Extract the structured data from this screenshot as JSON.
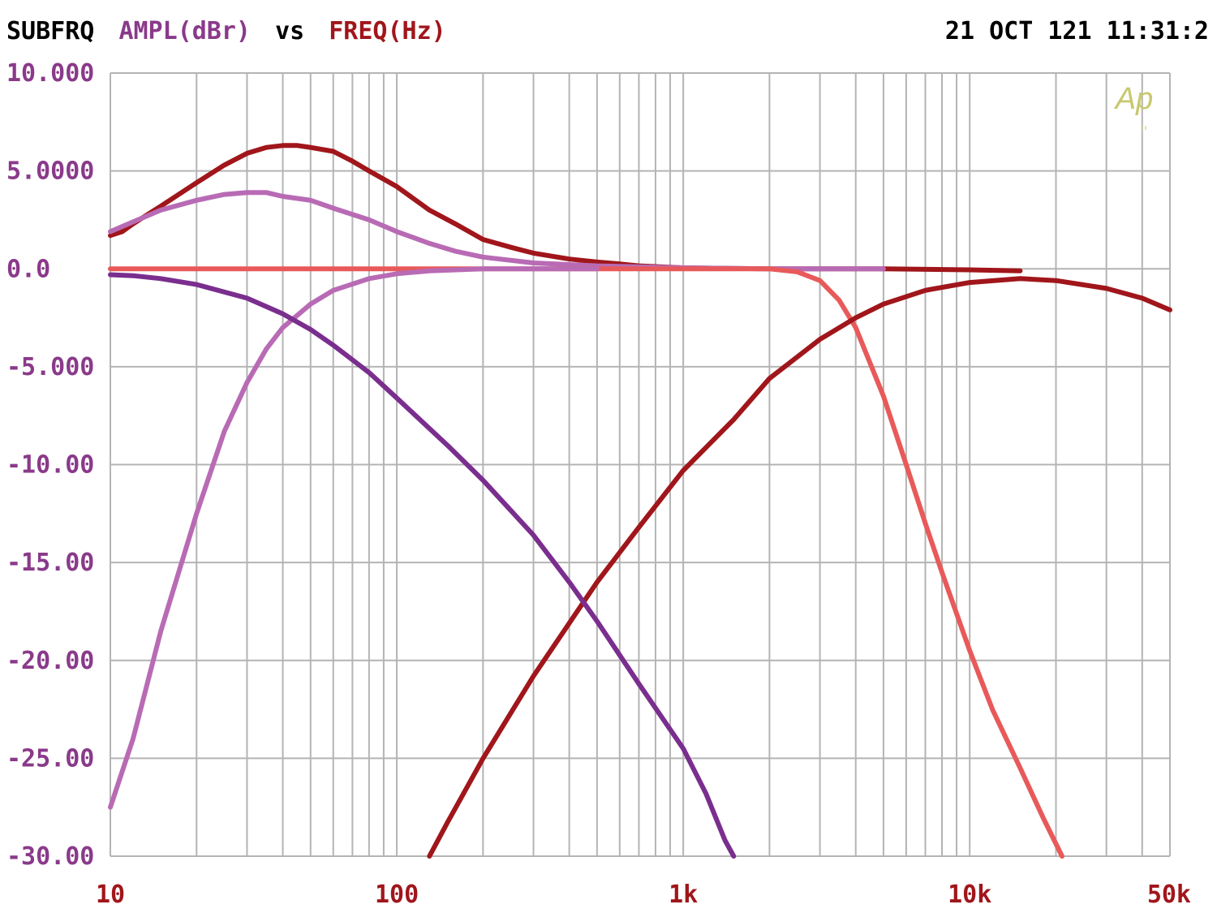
{
  "header": {
    "prefix": "SUBFRQ",
    "y_quantity": "AMPL(dBr)",
    "vs": "vs",
    "x_quantity": "FREQ(Hz)",
    "timestamp": "21 OCT 121 11:31:2"
  },
  "logo_text": "Ap",
  "colors": {
    "background": "#ffffff",
    "grid": "#b4b4b4",
    "header_black": "#000000",
    "y_label": "#8a3a8a",
    "x_label": "#a0161b",
    "logo": "#c8c86e"
  },
  "chart_data": {
    "type": "line",
    "xscale": "log",
    "xlim": [
      10,
      50000
    ],
    "ylim": [
      -30,
      10
    ],
    "grid": true,
    "x_ticks": [
      {
        "value": 10,
        "label": "10"
      },
      {
        "value": 100,
        "label": "100"
      },
      {
        "value": 1000,
        "label": "1k"
      },
      {
        "value": 10000,
        "label": "10k"
      },
      {
        "value": 50000,
        "label": "50k"
      }
    ],
    "y_ticks": [
      {
        "value": 10,
        "label": "10.000"
      },
      {
        "value": 5,
        "label": "5.0000"
      },
      {
        "value": 0,
        "label": "0.0"
      },
      {
        "value": -5,
        "label": "-5.000"
      },
      {
        "value": -10,
        "label": "-10.00"
      },
      {
        "value": -15,
        "label": "-15.00"
      },
      {
        "value": -20,
        "label": "-20.00"
      },
      {
        "value": -25,
        "label": "-25.00"
      },
      {
        "value": -30,
        "label": "-30.00"
      }
    ],
    "series": [
      {
        "color": "#a0161b",
        "points": [
          [
            10,
            1.7
          ],
          [
            11,
            1.9
          ],
          [
            12,
            2.3
          ],
          [
            15,
            3.2
          ],
          [
            20,
            4.4
          ],
          [
            25,
            5.3
          ],
          [
            30,
            5.9
          ],
          [
            35,
            6.2
          ],
          [
            40,
            6.3
          ],
          [
            45,
            6.3
          ],
          [
            50,
            6.2
          ],
          [
            60,
            6.0
          ],
          [
            70,
            5.5
          ],
          [
            80,
            5.0
          ],
          [
            100,
            4.2
          ],
          [
            130,
            3.0
          ],
          [
            160,
            2.3
          ],
          [
            200,
            1.5
          ],
          [
            250,
            1.1
          ],
          [
            300,
            0.8
          ],
          [
            400,
            0.5
          ],
          [
            500,
            0.35
          ],
          [
            600,
            0.25
          ],
          [
            700,
            0.15
          ],
          [
            1000,
            0.05
          ],
          [
            2000,
            0.0
          ],
          [
            5000,
            0.0
          ],
          [
            10000,
            -0.05
          ],
          [
            15000,
            -0.1
          ]
        ]
      },
      {
        "color": "#b86bb4",
        "points": [
          [
            10,
            1.9
          ],
          [
            12,
            2.4
          ],
          [
            15,
            3.0
          ],
          [
            20,
            3.5
          ],
          [
            25,
            3.8
          ],
          [
            30,
            3.9
          ],
          [
            35,
            3.9
          ],
          [
            40,
            3.7
          ],
          [
            50,
            3.5
          ],
          [
            60,
            3.1
          ],
          [
            80,
            2.5
          ],
          [
            100,
            1.9
          ],
          [
            130,
            1.3
          ],
          [
            160,
            0.9
          ],
          [
            200,
            0.6
          ],
          [
            300,
            0.3
          ],
          [
            500,
            0.15
          ],
          [
            1000,
            0.05
          ],
          [
            2000,
            0.0
          ],
          [
            5000,
            0.0
          ]
        ]
      },
      {
        "color": "#e85a5a",
        "points": [
          [
            10,
            0.0
          ],
          [
            100,
            0.0
          ],
          [
            1000,
            0.0
          ],
          [
            2000,
            0.0
          ],
          [
            2500,
            -0.15
          ],
          [
            3000,
            -0.6
          ],
          [
            3500,
            -1.6
          ],
          [
            4000,
            -3.0
          ],
          [
            5000,
            -6.5
          ],
          [
            6000,
            -10.0
          ],
          [
            7000,
            -13.0
          ],
          [
            8000,
            -15.5
          ],
          [
            10000,
            -19.5
          ],
          [
            12000,
            -22.5
          ],
          [
            15000,
            -25.5
          ],
          [
            18000,
            -28.0
          ],
          [
            21000,
            -30.0
          ]
        ]
      },
      {
        "color": "#a0161b",
        "points": [
          [
            130,
            -30.0
          ],
          [
            150,
            -28.3
          ],
          [
            200,
            -25.0
          ],
          [
            300,
            -20.8
          ],
          [
            400,
            -18.1
          ],
          [
            500,
            -16.0
          ],
          [
            700,
            -13.2
          ],
          [
            1000,
            -10.3
          ],
          [
            1500,
            -7.7
          ],
          [
            2000,
            -5.6
          ],
          [
            3000,
            -3.6
          ],
          [
            4000,
            -2.5
          ],
          [
            5000,
            -1.8
          ],
          [
            7000,
            -1.1
          ],
          [
            10000,
            -0.7
          ],
          [
            15000,
            -0.5
          ],
          [
            20000,
            -0.6
          ],
          [
            30000,
            -1.0
          ],
          [
            40000,
            -1.5
          ],
          [
            50000,
            -2.1
          ]
        ]
      },
      {
        "color": "#b86bb4",
        "points": [
          [
            10,
            -27.5
          ],
          [
            12,
            -24.0
          ],
          [
            15,
            -18.5
          ],
          [
            20,
            -12.5
          ],
          [
            25,
            -8.3
          ],
          [
            30,
            -5.8
          ],
          [
            35,
            -4.1
          ],
          [
            40,
            -3.0
          ],
          [
            50,
            -1.8
          ],
          [
            60,
            -1.1
          ],
          [
            80,
            -0.5
          ],
          [
            100,
            -0.25
          ],
          [
            130,
            -0.1
          ],
          [
            200,
            0.0
          ],
          [
            500,
            0.0
          ]
        ]
      },
      {
        "color": "#7a2e8e",
        "points": [
          [
            10,
            -0.3
          ],
          [
            12,
            -0.35
          ],
          [
            15,
            -0.5
          ],
          [
            20,
            -0.8
          ],
          [
            30,
            -1.5
          ],
          [
            40,
            -2.3
          ],
          [
            50,
            -3.1
          ],
          [
            60,
            -3.9
          ],
          [
            80,
            -5.3
          ],
          [
            100,
            -6.6
          ],
          [
            150,
            -9.0
          ],
          [
            200,
            -10.8
          ],
          [
            300,
            -13.6
          ],
          [
            400,
            -16.0
          ],
          [
            500,
            -18.0
          ],
          [
            700,
            -21.2
          ],
          [
            1000,
            -24.5
          ],
          [
            1200,
            -26.8
          ],
          [
            1400,
            -29.2
          ],
          [
            1500,
            -30.0
          ]
        ]
      }
    ]
  }
}
